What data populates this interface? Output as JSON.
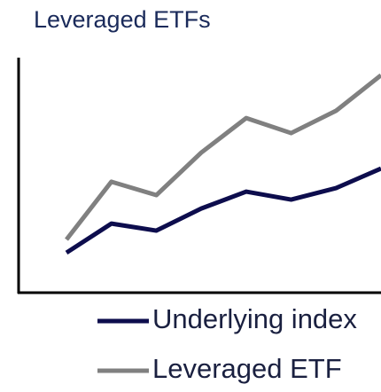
{
  "chart_data": {
    "type": "line",
    "title": "Leveraged ETFs",
    "categories": [
      null,
      null,
      null,
      null,
      null,
      null,
      null,
      null
    ],
    "series": [
      {
        "name": "Underlying index",
        "color": "#0d0d4d",
        "values": [
          17,
          29.4,
          26.4,
          35.8,
          43,
          39.6,
          44.5,
          52.8
        ]
      },
      {
        "name": "Leveraged ETF",
        "color": "#808080",
        "values": [
          22.6,
          47.2,
          41.5,
          59.6,
          74.3,
          67.9,
          77.4,
          92.5
        ]
      }
    ],
    "ylim": [
      0,
      100
    ],
    "grid": false
  }
}
